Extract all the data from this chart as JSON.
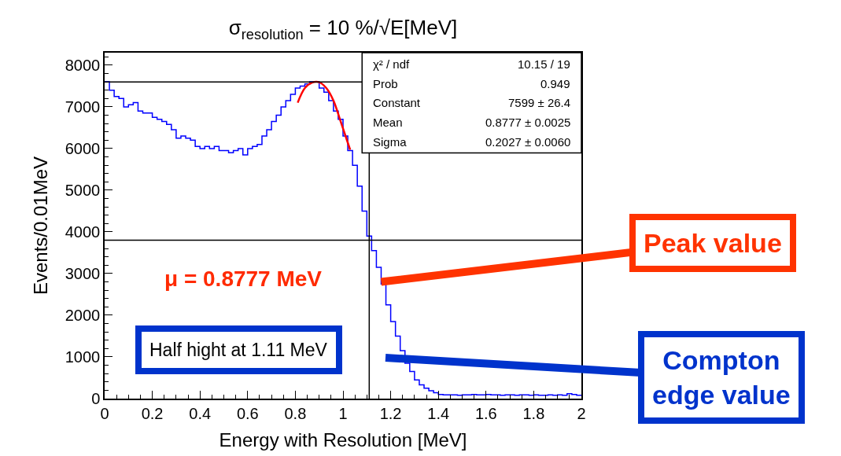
{
  "chart_data": {
    "type": "histogram",
    "title": "σ$_{resolution}$ = 10 %/√E[MeV]",
    "xlabel": "Energy with Resolution [MeV]",
    "ylabel": "Events/0.01MeV",
    "bins": [
      0,
      0.02,
      0.04,
      0.06,
      0.08,
      0.1,
      0.12,
      0.14,
      0.16,
      0.18,
      0.2,
      0.22,
      0.24,
      0.26,
      0.28,
      0.3,
      0.32,
      0.34,
      0.36,
      0.38,
      0.4,
      0.42,
      0.44,
      0.46,
      0.48,
      0.5,
      0.52,
      0.54,
      0.56,
      0.58,
      0.6,
      0.62,
      0.64,
      0.66,
      0.68,
      0.7,
      0.72,
      0.74,
      0.76,
      0.78,
      0.8,
      0.82,
      0.84,
      0.86,
      0.88,
      0.9,
      0.92,
      0.94,
      0.96,
      0.98,
      1,
      1.02,
      1.04,
      1.06,
      1.08,
      1.1,
      1.12,
      1.14,
      1.16,
      1.18,
      1.2,
      1.22,
      1.24,
      1.26,
      1.28,
      1.3,
      1.32,
      1.34,
      1.36,
      1.38,
      1.4,
      1.42,
      1.44,
      1.46,
      1.48,
      1.5,
      1.52,
      1.54,
      1.56,
      1.58,
      1.6,
      1.62,
      1.64,
      1.66,
      1.68,
      1.7,
      1.72,
      1.74,
      1.76,
      1.78,
      1.8,
      1.82,
      1.84,
      1.86,
      1.88,
      1.9,
      1.92,
      1.94,
      1.96,
      1.98,
      2
    ],
    "values": [
      7600,
      7400,
      7250,
      7200,
      7000,
      7050,
      7100,
      6900,
      6850,
      6850,
      6750,
      6700,
      6650,
      6580,
      6450,
      6250,
      6300,
      6250,
      6200,
      6050,
      6000,
      6050,
      6000,
      6050,
      5950,
      5950,
      5900,
      5950,
      6000,
      5850,
      6000,
      6050,
      6100,
      6300,
      6450,
      6650,
      6800,
      7000,
      7150,
      7300,
      7450,
      7500,
      7550,
      7600,
      7600,
      7450,
      7350,
      7150,
      6900,
      6700,
      6300,
      5950,
      5600,
      5100,
      4500,
      3900,
      3550,
      3150,
      2750,
      2250,
      1850,
      1500,
      1150,
      850,
      650,
      450,
      330,
      250,
      190,
      140,
      100,
      90,
      90,
      90,
      80,
      90,
      90,
      100,
      90,
      90,
      100,
      90,
      90,
      80,
      90,
      90,
      80,
      90,
      90,
      80,
      90,
      80,
      80,
      90,
      80,
      90,
      80,
      120,
      100,
      80
    ],
    "color": "#0000ff",
    "series": [
      {
        "type": "line",
        "color": "#ff0000",
        "x": [
          0.81,
          0.84,
          0.87,
          0.9,
          0.93,
          0.96,
          0.99,
          1.03
        ],
        "values": [
          7100,
          7450,
          7580,
          7590,
          7450,
          7150,
          6650,
          5970
        ]
      }
    ],
    "xlim": [
      0,
      2
    ],
    "ylim": [
      0,
      8300
    ],
    "xticks": [
      0,
      0.2,
      0.4,
      0.6,
      0.8,
      1,
      1.2,
      1.4,
      1.6,
      1.8,
      2
    ],
    "yticks": [
      0,
      1000,
      2000,
      3000,
      4000,
      5000,
      6000,
      7000,
      8000
    ],
    "ref_lines": [
      {
        "axis": "y",
        "value": 7599,
        "color": "#000000"
      },
      {
        "axis": "y",
        "value": 3800,
        "color": "#000000"
      },
      {
        "axis": "x",
        "value": 1.11,
        "color": "#000000"
      }
    ],
    "annotations": [
      "χ² / ndf\t10.15 / 19",
      "Prob\t0.949",
      "Constant\t7599 ± 26.4",
      "Mean\t0.8777 ± 0.0025",
      "Sigma\t0.2027 ± 0.0060",
      "μ = 0.8777 MeV",
      "Half hight at 1.11 MeV",
      {
        "text": "Peak value",
        "x": 1.16,
        "y": 2800
      },
      "Compton edge value"
    ],
    "legend": false
  }
}
